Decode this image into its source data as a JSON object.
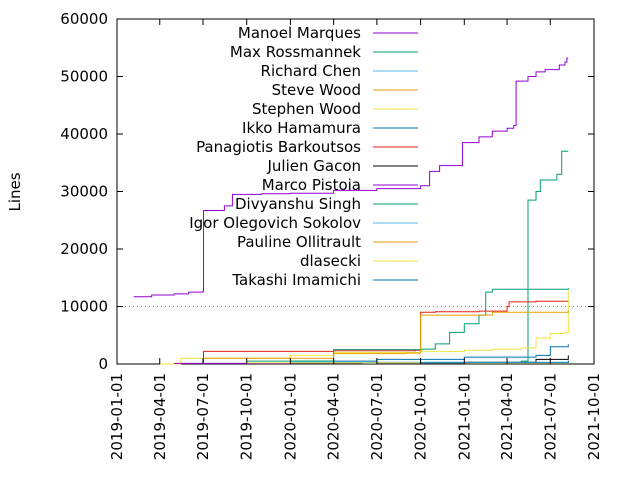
{
  "chart_data": {
    "type": "line",
    "title": "",
    "xlabel": "",
    "ylabel": "Lines",
    "ylim": [
      0,
      60000
    ],
    "xlim": [
      "2019-01-01",
      "2021-10-01"
    ],
    "y_ticks": [
      0,
      10000,
      20000,
      30000,
      40000,
      50000,
      60000
    ],
    "x_ticks": [
      "2019-01-01",
      "2019-04-01",
      "2019-07-01",
      "2019-10-01",
      "2020-01-01",
      "2020-04-01",
      "2020-07-01",
      "2020-10-01",
      "2021-01-01",
      "2021-04-01",
      "2021-07-01",
      "2021-10-01"
    ],
    "reference_line": {
      "y": 10000,
      "style": "dotted"
    },
    "grid": false,
    "legend_position": "top-center",
    "series": [
      {
        "name": "Manoel Marques",
        "color": "#9400d3",
        "points": [
          [
            "2019-02-05",
            11700
          ],
          [
            "2019-03-15",
            12000
          ],
          [
            "2019-05-01",
            12200
          ],
          [
            "2019-06-01",
            12500
          ],
          [
            "2019-07-01",
            12700
          ],
          [
            "2019-07-02",
            26700
          ],
          [
            "2019-08-15",
            27500
          ],
          [
            "2019-09-01",
            29500
          ],
          [
            "2019-11-01",
            29600
          ],
          [
            "2020-01-01",
            29700
          ],
          [
            "2020-04-01",
            30200
          ],
          [
            "2020-07-01",
            30500
          ],
          [
            "2020-10-01",
            31000
          ],
          [
            "2020-10-20",
            33500
          ],
          [
            "2020-11-10",
            34500
          ],
          [
            "2020-12-25",
            34500
          ],
          [
            "2020-12-28",
            38500
          ],
          [
            "2021-02-01",
            39500
          ],
          [
            "2021-03-01",
            40500
          ],
          [
            "2021-04-01",
            41000
          ],
          [
            "2021-04-15",
            41500
          ],
          [
            "2021-04-20",
            49200
          ],
          [
            "2021-05-15",
            50000
          ],
          [
            "2021-06-01",
            50800
          ],
          [
            "2021-06-20",
            51200
          ],
          [
            "2021-07-20",
            52000
          ],
          [
            "2021-08-01",
            52500
          ],
          [
            "2021-08-05",
            53200
          ],
          [
            "2021-08-08",
            53200
          ]
        ]
      },
      {
        "name": "Max Rossmannek",
        "color": "#009e73",
        "points": [
          [
            "2021-02-20",
            100
          ],
          [
            "2021-05-01",
            500
          ],
          [
            "2021-05-15",
            28500
          ],
          [
            "2021-06-01",
            30000
          ],
          [
            "2021-06-10",
            32000
          ],
          [
            "2021-07-15",
            33000
          ],
          [
            "2021-07-25",
            37000
          ],
          [
            "2021-08-08",
            37000
          ]
        ]
      },
      {
        "name": "Richard Chen",
        "color": "#56b4e9",
        "points": [
          [
            "2020-06-01",
            100
          ],
          [
            "2021-08-08",
            200
          ]
        ]
      },
      {
        "name": "Steve Wood",
        "color": "#e69f00",
        "points": [
          [
            "2020-10-01",
            100
          ],
          [
            "2021-08-08",
            300
          ]
        ]
      },
      {
        "name": "Stephen Wood",
        "color": "#f0e442",
        "points": [
          [
            "2019-04-01",
            0
          ],
          [
            "2019-05-15",
            1000
          ],
          [
            "2020-01-01",
            1500
          ],
          [
            "2020-04-01",
            2000
          ],
          [
            "2020-10-01",
            2200
          ],
          [
            "2021-01-01",
            2400
          ],
          [
            "2021-03-01",
            2600
          ],
          [
            "2021-05-01",
            2800
          ],
          [
            "2021-06-01",
            4500
          ],
          [
            "2021-07-01",
            5300
          ],
          [
            "2021-08-01",
            5500
          ],
          [
            "2021-08-08",
            13000
          ]
        ]
      },
      {
        "name": "Ikko Hamamura",
        "color": "#0072b2",
        "points": [
          [
            "2020-01-01",
            500
          ],
          [
            "2020-07-01",
            800
          ],
          [
            "2021-01-01",
            1200
          ],
          [
            "2021-06-01",
            1500
          ],
          [
            "2021-07-01",
            3000
          ],
          [
            "2021-08-08",
            3400
          ]
        ]
      },
      {
        "name": "Panagiotis Barkoutsos",
        "color": "#e51e10",
        "points": [
          [
            "2019-07-01",
            0
          ],
          [
            "2019-07-02",
            2200
          ],
          [
            "2020-04-01",
            2300
          ],
          [
            "2020-09-20",
            2400
          ],
          [
            "2020-10-01",
            9000
          ],
          [
            "2020-11-01",
            9100
          ],
          [
            "2021-02-01",
            9200
          ],
          [
            "2021-04-01",
            10000
          ],
          [
            "2021-04-05",
            10800
          ],
          [
            "2021-06-01",
            10900
          ],
          [
            "2021-08-08",
            10900
          ]
        ]
      },
      {
        "name": "Julien Gacon",
        "color": "#000000",
        "points": [
          [
            "2020-07-01",
            100
          ],
          [
            "2021-01-01",
            300
          ],
          [
            "2021-06-01",
            800
          ],
          [
            "2021-08-08",
            1500
          ]
        ]
      },
      {
        "name": "Marco Pistoia",
        "color": "#9400d3",
        "points": [
          [
            "2019-05-01",
            100
          ],
          [
            "2020-01-01",
            200
          ],
          [
            "2021-08-08",
            300
          ]
        ]
      },
      {
        "name": "Divyanshu Singh",
        "color": "#009e73",
        "points": [
          [
            "2019-10-01",
            500
          ],
          [
            "2020-04-01",
            2500
          ],
          [
            "2020-10-01",
            2600
          ],
          [
            "2020-11-01",
            3500
          ],
          [
            "2020-12-01",
            5500
          ],
          [
            "2021-01-01",
            7000
          ],
          [
            "2021-02-01",
            8500
          ],
          [
            "2021-02-15",
            12500
          ],
          [
            "2021-03-01",
            13000
          ],
          [
            "2021-08-08",
            13200
          ]
        ]
      },
      {
        "name": "Igor Olegovich Sokolov",
        "color": "#56b4e9",
        "points": [
          [
            "2020-01-01",
            300
          ],
          [
            "2021-08-08",
            500
          ]
        ]
      },
      {
        "name": "Pauline Ollitrault",
        "color": "#e69f00",
        "points": [
          [
            "2019-07-01",
            1000
          ],
          [
            "2020-04-01",
            1800
          ],
          [
            "2020-09-01",
            1900
          ],
          [
            "2020-10-01",
            8500
          ],
          [
            "2021-03-01",
            9000
          ],
          [
            "2021-08-08",
            9300
          ]
        ]
      },
      {
        "name": "dlasecki",
        "color": "#f0e442",
        "points": [
          [
            "2019-10-01",
            200
          ],
          [
            "2021-08-08",
            600
          ]
        ]
      },
      {
        "name": "Takashi Imamichi",
        "color": "#0072b2",
        "points": [
          [
            "2020-10-01",
            200
          ],
          [
            "2021-08-08",
            600
          ]
        ]
      }
    ]
  }
}
